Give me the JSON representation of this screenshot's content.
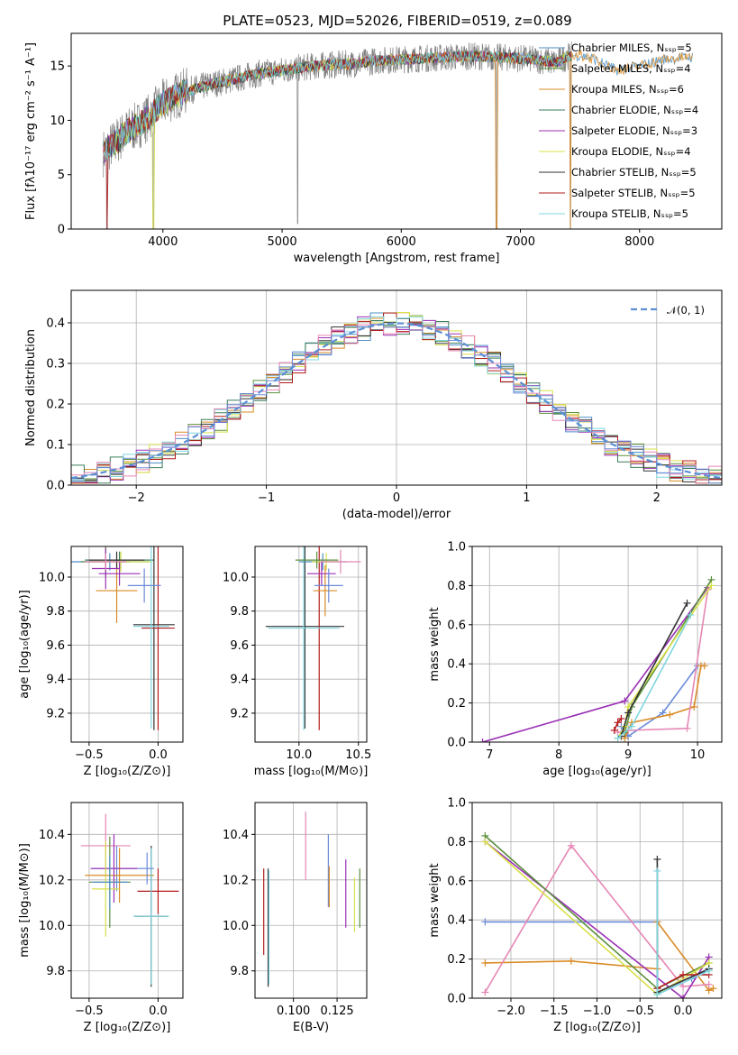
{
  "figure": {
    "title": "PLATE=0523, MJD=52026, FIBERID=0519, z=0.089"
  },
  "chart_data": [
    {
      "id": "spectrum",
      "type": "line",
      "xlabel": "wavelength [Angstrom, rest frame]",
      "ylabel": "Flux [fλ10⁻¹⁷ erg cm⁻² s⁻¹ A⁻¹]",
      "xlim": [
        3230,
        8690
      ],
      "ylim": [
        0,
        18
      ],
      "xticks": [
        4000,
        5000,
        6000,
        7000,
        8000
      ],
      "yticks": [
        0,
        5,
        10,
        15
      ],
      "grid": false,
      "legend_position": "right",
      "series": [
        {
          "name": "Chabrier MILES, Nₛₛₚ=5",
          "color": "#4c8fc6"
        },
        {
          "name": "Salpeter MILES, Nₛₛₚ=4",
          "color": "#5b8f3c"
        },
        {
          "name": "Kroupa MILES, Nₛₛₚ=6",
          "color": "#d98b26"
        },
        {
          "name": "Chabrier ELODIE, Nₛₛₚ=4",
          "color": "#3a7d5a"
        },
        {
          "name": "Salpeter ELODIE, Nₛₛₚ=3",
          "color": "#9a2fb5"
        },
        {
          "name": "Kroupa ELODIE, Nₛₛₚ=4",
          "color": "#d7e04a"
        },
        {
          "name": "Chabrier STELIB, Nₛₛₚ=5",
          "color": "#333333"
        },
        {
          "name": "Salpeter STELIB, Nₛₛₚ=5",
          "color": "#b31b1b"
        },
        {
          "name": "Kroupa STELIB, Nₛₛₚ=5",
          "color": "#7fd6e0"
        }
      ],
      "data_line": {
        "color": "#808080"
      },
      "continuum": {
        "x": [
          3500,
          3600,
          3700,
          3800,
          3900,
          4000,
          4100,
          4200,
          4400,
          4600,
          4800,
          5000,
          5200,
          5400,
          5600,
          5800,
          6000,
          6200,
          6400,
          6600,
          6800,
          7000,
          7200,
          7300,
          7400,
          7500,
          7600,
          7700,
          7800,
          8000,
          8200,
          8400
        ],
        "y": [
          7.0,
          8.0,
          9.0,
          9.6,
          10.5,
          11.6,
          12.2,
          12.7,
          13.3,
          13.8,
          14.3,
          14.6,
          14.9,
          15.1,
          15.2,
          15.5,
          15.6,
          15.7,
          15.8,
          15.9,
          15.8,
          15.7,
          15.5,
          15.3,
          15.9,
          16.0,
          15.7,
          15.2,
          14.6,
          15.0,
          15.6,
          15.8
        ]
      },
      "dips": [
        {
          "x": 3530,
          "y": 0.0
        },
        {
          "x": 3920,
          "y": 0.0
        },
        {
          "x": 5130,
          "y": 0.5
        },
        {
          "x": 6800,
          "y": 0.0
        },
        {
          "x": 7420,
          "y": 0.0
        }
      ]
    },
    {
      "id": "residuals",
      "type": "histogram",
      "xlabel": "(data-model)/error",
      "ylabel": "Normed distribution",
      "xlim": [
        -2.5,
        2.5
      ],
      "ylim": [
        0,
        0.48
      ],
      "xticks": [
        -2,
        -1,
        0,
        1,
        2
      ],
      "xtick_labels": [
        "−2",
        "−1",
        "0",
        "1",
        "2"
      ],
      "yticks": [
        0.0,
        0.1,
        0.2,
        0.3,
        0.4
      ],
      "ytick_labels": [
        "0.0",
        "0.1",
        "0.2",
        "0.3",
        "0.4"
      ],
      "grid": true,
      "legend_position": "top-right",
      "gaussian": {
        "name": "𝒩(0, 1)",
        "color": "#5b8fd6"
      },
      "bin_width": 0.1,
      "series_colors": [
        "#4c8fc6",
        "#5b8f3c",
        "#d98b26",
        "#3a7d5a",
        "#9a2fb5",
        "#d7e04a",
        "#333333",
        "#b31b1b",
        "#7fd6e0",
        "#e587b5",
        "#6b8bd8"
      ]
    },
    {
      "id": "age-vs-Z",
      "type": "scatter",
      "xlabel": "Z [log₁₀(Z/Z⊙)]",
      "ylabel": "age  [log₁₀(age/yr)]",
      "xlim": [
        -0.63,
        0.18
      ],
      "ylim": [
        9.03,
        10.18
      ],
      "xticks": [
        -0.5,
        0.0
      ],
      "xtick_labels": [
        "−0.5",
        "0.0"
      ],
      "yticks": [
        9.2,
        9.4,
        9.6,
        9.8,
        10.0
      ],
      "ytick_labels": [
        "9.2",
        "9.4",
        "9.6",
        "9.8",
        "10.0"
      ],
      "grid": true,
      "points": [
        {
          "x": -0.35,
          "y": 10.09,
          "xerr": 0.28,
          "yerr": 0.05,
          "color": "#4c8fc6"
        },
        {
          "x": -0.38,
          "y": 10.09,
          "xerr": 0.18,
          "yerr": 0.09,
          "color": "#5b8f3c"
        },
        {
          "x": -0.3,
          "y": 9.92,
          "xerr": 0.15,
          "yerr": 0.19,
          "color": "#d98b26"
        },
        {
          "x": -0.28,
          "y": 10.1,
          "xerr": 0.25,
          "yerr": 0.05,
          "color": "#3a7d5a"
        },
        {
          "x": -0.28,
          "y": 10.02,
          "xerr": 0.15,
          "yerr": 0.07,
          "color": "#9a2fb5"
        },
        {
          "x": -0.27,
          "y": 10.09,
          "xerr": 0.22,
          "yerr": 0.06,
          "color": "#d7e04a"
        },
        {
          "x": -0.3,
          "y": 10.1,
          "xerr": 0.2,
          "yerr": 0.05,
          "color": "#333333"
        },
        {
          "x": -0.38,
          "y": 10.05,
          "xerr": 0.1,
          "yerr": 0.12,
          "color": "#9a2fb5"
        },
        {
          "x": -0.03,
          "y": 9.72,
          "xerr": 0.15,
          "yerr": 0.62,
          "color": "#333333"
        },
        {
          "x": 0.0,
          "y": 9.7,
          "xerr": 0.12,
          "yerr": 0.6,
          "color": "#b31b1b"
        },
        {
          "x": -0.05,
          "y": 9.71,
          "xerr": 0.13,
          "yerr": 0.6,
          "color": "#7fd6e0"
        },
        {
          "x": -0.1,
          "y": 9.95,
          "xerr": 0.12,
          "yerr": 0.1,
          "color": "#6b8bd8"
        },
        {
          "x": -0.38,
          "y": 10.09,
          "xerr": 0.15,
          "yerr": 0.05,
          "color": "#e587b5"
        }
      ]
    },
    {
      "id": "age-vs-mass",
      "type": "scatter",
      "xlabel": "mass [log₁₀(M/M⊙)]",
      "ylabel": "",
      "xlim": [
        9.63,
        10.57
      ],
      "ylim": [
        9.03,
        10.18
      ],
      "xticks": [
        10.0,
        10.5
      ],
      "xtick_labels": [
        "10.0",
        "10.5"
      ],
      "yticks": [
        9.2,
        9.4,
        9.6,
        9.8,
        10.0
      ],
      "ytick_labels": [
        "9.2",
        "9.4",
        "9.6",
        "9.8",
        "10.0"
      ],
      "grid": true,
      "points": [
        {
          "x": 10.05,
          "y": 9.71,
          "xerr": 0.33,
          "yerr": 0.6,
          "color": "#333333"
        },
        {
          "x": 10.17,
          "y": 9.7,
          "xerr": 0.0,
          "yerr": 0.6,
          "color": "#b31b1b"
        },
        {
          "x": 10.04,
          "y": 9.7,
          "xerr": 0.3,
          "yerr": 0.6,
          "color": "#7fd6e0"
        },
        {
          "x": 10.2,
          "y": 10.09,
          "xerr": 0.2,
          "yerr": 0.05,
          "color": "#4c8fc6"
        },
        {
          "x": 10.23,
          "y": 10.09,
          "xerr": 0.12,
          "yerr": 0.05,
          "color": "#d7e04a"
        },
        {
          "x": 10.22,
          "y": 9.92,
          "xerr": 0.1,
          "yerr": 0.15,
          "color": "#d98b26"
        },
        {
          "x": 10.19,
          "y": 10.02,
          "xerr": 0.12,
          "yerr": 0.07,
          "color": "#9a2fb5"
        },
        {
          "x": 10.35,
          "y": 10.09,
          "xerr": 0.17,
          "yerr": 0.07,
          "color": "#e587b5"
        },
        {
          "x": 10.25,
          "y": 9.95,
          "xerr": 0.12,
          "yerr": 0.1,
          "color": "#6b8bd8"
        },
        {
          "x": 10.15,
          "y": 10.1,
          "xerr": 0.18,
          "yerr": 0.05,
          "color": "#5b8f3c"
        }
      ]
    },
    {
      "id": "massweight-vs-age",
      "type": "line",
      "xlabel": "age  [log₁₀(age/yr)]",
      "ylabel": "mass weight",
      "xlim": [
        6.75,
        10.35
      ],
      "ylim": [
        0.0,
        1.0
      ],
      "xticks": [
        7,
        8,
        9,
        10
      ],
      "xtick_labels": [
        "7",
        "8",
        "9",
        "10"
      ],
      "yticks": [
        0.0,
        0.2,
        0.4,
        0.6,
        0.8,
        1.0
      ],
      "ytick_labels": [
        "0.0",
        "0.2",
        "0.4",
        "0.6",
        "0.8",
        "1.0"
      ],
      "grid": true,
      "series": [
        {
          "color": "#9a2fb5",
          "x": [
            6.9,
            8.95,
            10.15
          ],
          "y": [
            0.0,
            0.21,
            0.79
          ]
        },
        {
          "color": "#6b8bd8",
          "x": [
            8.9,
            9.0,
            9.5,
            10.0
          ],
          "y": [
            0.08,
            0.03,
            0.15,
            0.39
          ]
        },
        {
          "color": "#d98b26",
          "x": [
            8.95,
            9.05,
            9.6,
            9.95,
            10.05,
            10.1
          ],
          "y": [
            0.02,
            0.1,
            0.14,
            0.18,
            0.39,
            0.39
          ]
        },
        {
          "color": "#e587b5",
          "x": [
            8.85,
            9.0,
            9.85,
            10.15
          ],
          "y": [
            0.05,
            0.06,
            0.07,
            0.78
          ]
        },
        {
          "color": "#5b8f3c",
          "x": [
            8.95,
            9.05,
            10.2
          ],
          "y": [
            0.05,
            0.18,
            0.83
          ]
        },
        {
          "color": "#d7e04a",
          "x": [
            8.85,
            8.95,
            9.0,
            10.2
          ],
          "y": [
            0.02,
            0.08,
            0.18,
            0.8
          ]
        },
        {
          "color": "#333333",
          "x": [
            8.9,
            9.0,
            9.85
          ],
          "y": [
            0.03,
            0.15,
            0.71
          ]
        },
        {
          "color": "#b31b1b",
          "x": [
            8.8,
            8.85,
            8.9
          ],
          "y": [
            0.06,
            0.1,
            0.12
          ]
        },
        {
          "color": "#7fd6e0",
          "x": [
            8.85,
            9.05,
            9.9
          ],
          "y": [
            0.02,
            0.08,
            0.65
          ]
        }
      ]
    },
    {
      "id": "mass-vs-Z",
      "type": "scatter",
      "xlabel": "Z [log₁₀(Z/Z⊙)]",
      "ylabel": "mass [log₁₀(M/M⊙)]",
      "xlim": [
        -0.63,
        0.18
      ],
      "ylim": [
        9.68,
        10.54
      ],
      "xticks": [
        -0.5,
        0.0
      ],
      "xtick_labels": [
        "−0.5",
        "0.0"
      ],
      "yticks": [
        9.8,
        10.0,
        10.2,
        10.4
      ],
      "ytick_labels": [
        "9.8",
        "10.0",
        "10.2",
        "10.4"
      ],
      "grid": true,
      "points": [
        {
          "x": -0.38,
          "y": 10.35,
          "xerr": 0.18,
          "yerr": 0.14,
          "color": "#e587b5"
        },
        {
          "x": -0.3,
          "y": 10.25,
          "xerr": 0.18,
          "yerr": 0.1,
          "color": "#6b8bd8"
        },
        {
          "x": -0.28,
          "y": 10.22,
          "xerr": 0.25,
          "yerr": 0.12,
          "color": "#d98b26"
        },
        {
          "x": -0.32,
          "y": 10.25,
          "xerr": 0.17,
          "yerr": 0.15,
          "color": "#9a2fb5"
        },
        {
          "x": -0.35,
          "y": 10.19,
          "xerr": 0.15,
          "yerr": 0.2,
          "color": "#5b8f3c"
        },
        {
          "x": -0.38,
          "y": 10.16,
          "xerr": 0.1,
          "yerr": 0.21,
          "color": "#d7e04a"
        },
        {
          "x": -0.35,
          "y": 10.19,
          "xerr": 0.13,
          "yerr": 0.12,
          "color": "#4c8fc6"
        },
        {
          "x": 0.0,
          "y": 10.15,
          "xerr": 0.15,
          "yerr": 0.1,
          "color": "#b31b1b"
        },
        {
          "x": -0.05,
          "y": 10.04,
          "xerr": 0.12,
          "yerr": 0.31,
          "color": "#333333"
        },
        {
          "x": -0.05,
          "y": 10.04,
          "xerr": 0.13,
          "yerr": 0.3,
          "color": "#7fd6e0"
        },
        {
          "x": -0.08,
          "y": 10.25,
          "xerr": 0.05,
          "yerr": 0.07,
          "color": "#6b8bd8"
        }
      ]
    },
    {
      "id": "mass-vs-EBV",
      "type": "scatter",
      "xlabel": "E(B-V)",
      "ylabel": "",
      "xlim": [
        0.078,
        0.142
      ],
      "ylim": [
        9.68,
        10.54
      ],
      "xticks": [
        0.1,
        0.125
      ],
      "xtick_labels": [
        "0.100",
        "0.125"
      ],
      "yticks": [
        9.8,
        10.0,
        10.2,
        10.4
      ],
      "ytick_labels": [
        "9.8",
        "10.0",
        "10.2",
        "10.4"
      ],
      "grid": true,
      "points": [
        {
          "x": 0.083,
          "y": 10.06,
          "xerr": 0,
          "yerr": 0.19,
          "color": "#b31b1b"
        },
        {
          "x": 0.0855,
          "y": 9.99,
          "xerr": 0,
          "yerr": 0.26,
          "color": "#333333"
        },
        {
          "x": 0.086,
          "y": 9.99,
          "xerr": 0,
          "yerr": 0.25,
          "color": "#7fd6e0"
        },
        {
          "x": 0.107,
          "y": 10.35,
          "xerr": 0,
          "yerr": 0.15,
          "color": "#e587b5"
        },
        {
          "x": 0.12,
          "y": 10.24,
          "xerr": 0,
          "yerr": 0.16,
          "color": "#6b8bd8"
        },
        {
          "x": 0.1205,
          "y": 10.17,
          "xerr": 0,
          "yerr": 0.09,
          "color": "#d98b26"
        },
        {
          "x": 0.13,
          "y": 10.14,
          "xerr": 0,
          "yerr": 0.15,
          "color": "#9a2fb5"
        },
        {
          "x": 0.135,
          "y": 10.09,
          "xerr": 0,
          "yerr": 0.12,
          "color": "#d7e04a"
        },
        {
          "x": 0.138,
          "y": 10.12,
          "xerr": 0,
          "yerr": 0.13,
          "color": "#5b8f3c"
        }
      ]
    },
    {
      "id": "massweight-vs-Z",
      "type": "line",
      "xlabel": "Z [log₁₀(Z/Z⊙)]",
      "ylabel": "mass weight",
      "xlim": [
        -2.45,
        0.45
      ],
      "ylim": [
        0.0,
        1.0
      ],
      "xticks": [
        -2.0,
        -1.5,
        -1.0,
        -0.5,
        0.0
      ],
      "xtick_labels": [
        "−2.0",
        "−1.5",
        "−1.0",
        "−0.5",
        "0.0"
      ],
      "yticks": [
        0.0,
        0.2,
        0.4,
        0.6,
        0.8,
        1.0
      ],
      "ytick_labels": [
        "0.0",
        "0.2",
        "0.4",
        "0.6",
        "0.8",
        "1.0"
      ],
      "grid": true,
      "series": [
        {
          "color": "#6b8bd8",
          "x": [
            -2.3,
            -0.3,
            -0.3,
            0.1,
            0.3
          ],
          "y": [
            0.39,
            0.39,
            0.02,
            0.1,
            0.15
          ]
        },
        {
          "color": "#d98b26",
          "x": [
            -2.3,
            -1.3,
            -0.3,
            -0.3,
            0.3,
            0.35
          ],
          "y": [
            0.18,
            0.19,
            0.15,
            0.39,
            0.04,
            0.05
          ]
        },
        {
          "color": "#e587b5",
          "x": [
            -2.3,
            -1.3,
            0.0,
            0.3
          ],
          "y": [
            0.03,
            0.78,
            0.06,
            0.07
          ]
        },
        {
          "color": "#9a2fb5",
          "x": [
            -2.3,
            0.0,
            0.3
          ],
          "y": [
            0.8,
            0.0,
            0.21
          ]
        },
        {
          "color": "#5b8f3c",
          "x": [
            -2.3,
            -0.3,
            0.3
          ],
          "y": [
            0.83,
            0.05,
            0.18
          ]
        },
        {
          "color": "#d7e04a",
          "x": [
            -2.3,
            -0.3,
            0.3
          ],
          "y": [
            0.8,
            0.02,
            0.18
          ]
        },
        {
          "color": "#333333",
          "x": [
            -0.3,
            -0.3,
            0.3
          ],
          "y": [
            0.71,
            0.03,
            0.15
          ]
        },
        {
          "color": "#b31b1b",
          "x": [
            -0.3,
            0.0,
            0.3
          ],
          "y": [
            0.05,
            0.12,
            0.12
          ]
        },
        {
          "color": "#7fd6e0",
          "x": [
            -0.3,
            -0.3,
            0.3
          ],
          "y": [
            0.65,
            0.02,
            0.14
          ]
        }
      ]
    }
  ]
}
